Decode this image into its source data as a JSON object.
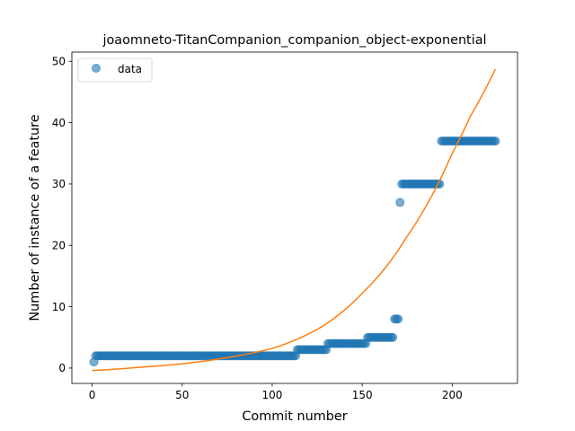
{
  "colors": {
    "scatter": "#1f77b4",
    "fit_line": "#ff7f0e",
    "axes": "#000000",
    "background": "#ffffff"
  },
  "chart_data": {
    "type": "scatter",
    "title": "joaomneto-TitanCompanion_companion_object-exponential",
    "xlabel": "Commit number",
    "ylabel": "Number of instance of a feature",
    "xlim": [
      -11.25,
      236.25
    ],
    "ylim": [
      -2.5,
      51.5
    ],
    "xticks": [
      0,
      50,
      100,
      150,
      200
    ],
    "yticks": [
      0,
      10,
      20,
      30,
      40,
      50
    ],
    "grid": false,
    "legend": {
      "position": "top-left",
      "entries": [
        {
          "label": "data",
          "marker": "circle"
        }
      ]
    },
    "series": [
      {
        "name": "data",
        "kind": "scatter",
        "segments": [
          {
            "x_from": 1,
            "x_to": 1,
            "y": 1
          },
          {
            "x_from": 2,
            "x_to": 113,
            "y": 2
          },
          {
            "x_from": 114,
            "x_to": 130,
            "y": 3
          },
          {
            "x_from": 131,
            "x_to": 152,
            "y": 4
          },
          {
            "x_from": 153,
            "x_to": 167,
            "y": 5
          },
          {
            "x_from": 168,
            "x_to": 170,
            "y": 8
          },
          {
            "x_from": 171,
            "x_to": 171,
            "y": 27
          },
          {
            "x_from": 172,
            "x_to": 193,
            "y": 30
          },
          {
            "x_from": 194,
            "x_to": 224,
            "y": 37
          }
        ]
      },
      {
        "kind": "line",
        "x": [
          0,
          25,
          50,
          75,
          100,
          125,
          150,
          175,
          200,
          210,
          224
        ],
        "y": [
          -0.4,
          0.1,
          0.7,
          1.7,
          3.2,
          6.3,
          12.2,
          21.5,
          35.0,
          41.0,
          48.7
        ]
      }
    ]
  }
}
